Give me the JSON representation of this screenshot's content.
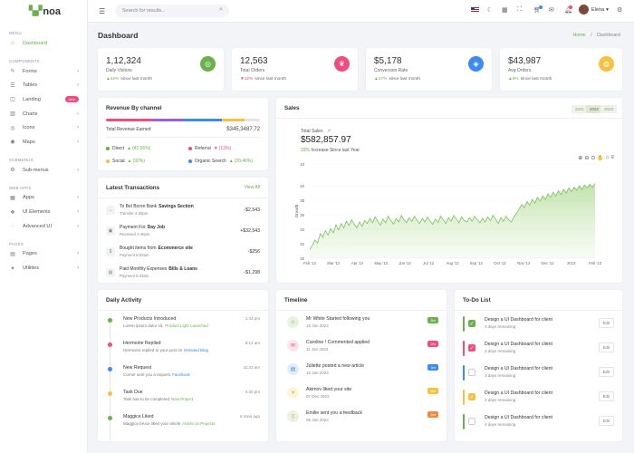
{
  "brand": {
    "logo_mark": "▚▞",
    "name": "noa"
  },
  "sidebar": {
    "sections": [
      "MENU",
      "COMPONENTS",
      "SUBMENUS",
      "WEB APPS",
      "PAGES"
    ],
    "items": [
      {
        "label": "Dashboard",
        "icon": "⌂"
      },
      {
        "label": "Forms",
        "icon": "✎"
      },
      {
        "label": "Tables",
        "icon": "☰"
      },
      {
        "label": "Landing",
        "icon": "◫",
        "badge": "new"
      },
      {
        "label": "Charts",
        "icon": "▥"
      },
      {
        "label": "Icons",
        "icon": "◎"
      },
      {
        "label": "Maps",
        "icon": "◉"
      },
      {
        "label": "Sub-menus",
        "icon": "⚙"
      },
      {
        "label": "Apps",
        "icon": "▦"
      },
      {
        "label": "UI Elements",
        "icon": "❖"
      },
      {
        "label": "Advanced UI",
        "icon": "◌"
      },
      {
        "label": "Pages",
        "icon": "▤"
      },
      {
        "label": "Utilities",
        "icon": "✦"
      }
    ]
  },
  "topbar": {
    "search_placeholder": "Search for results...",
    "user_name": "Elena",
    "user_chevron": "▾"
  },
  "page": {
    "title": "Dashboard",
    "breadcrumb_home": "Home",
    "breadcrumb_sep": "/",
    "breadcrumb_current": "Dashboard"
  },
  "stats": [
    {
      "value": "1,12,324",
      "label": "Daily Visitors",
      "change": "42%",
      "dir": "▲",
      "suffix": "since last month",
      "color": "#6ab04c",
      "icon": "◎"
    },
    {
      "value": "12,563",
      "label": "Total Orders",
      "change": "12%",
      "dir": "▼",
      "suffix": "since last month",
      "color": "#f04c7e",
      "icon": "❦"
    },
    {
      "value": "$5,178",
      "label": "Conversion Rate",
      "change": "27%",
      "dir": "▲",
      "suffix": "since last month",
      "color": "#3d8bf2",
      "icon": "◈"
    },
    {
      "value": "$43,987",
      "label": "Avg Orders",
      "change": "9%",
      "dir": "▲",
      "suffix": "since last month",
      "color": "#f6c23e",
      "icon": "◍"
    }
  ],
  "revenue": {
    "title": "Revenue By channel",
    "earned_label": "Total Revenue Earned",
    "earned_value": "$345,3487.72",
    "channels": [
      {
        "name": "Direct",
        "pct": "(42.56%)",
        "arrow": "▲",
        "color": "#6ab04c",
        "good": true
      },
      {
        "name": "Referral",
        "pct": "(13%)",
        "arrow": "▼",
        "color": "#f04c7e",
        "good": false
      },
      {
        "name": "Social",
        "pct": "(92%)",
        "arrow": "▲",
        "color": "#f6c23e",
        "good": true
      },
      {
        "name": "Organic Search",
        "pct": "(20.46%)",
        "arrow": "▲",
        "color": "#3d8bf2",
        "good": true
      }
    ]
  },
  "transactions": {
    "title": "Latest Transactions",
    "view_all": "View All",
    "items": [
      {
        "title": "To Bel Bcron Bank",
        "bold": "Savings Section",
        "sub": "Transfer 4:30pm",
        "amount": "-$2,543",
        "icon": "↔"
      },
      {
        "title": "Payment For",
        "bold": "Day Job",
        "sub": "Received 2:45pm",
        "amount": "+$32,543",
        "icon": "▣"
      },
      {
        "title": "Bought items from",
        "bold": "Ecommerce site",
        "sub": "Payment 8:00am",
        "amount": "-$256",
        "icon": "$"
      },
      {
        "title": "Paid Monthly Expenses",
        "bold": "Bills & Loans",
        "sub": "Payment 6:43am",
        "amount": "-$1,298",
        "icon": "▤"
      }
    ]
  },
  "sales": {
    "title": "Sales",
    "toggles": [
      "2021",
      "2022",
      "2023"
    ],
    "total_label": "Total Sales",
    "total_icon": "↗",
    "total_value": "$582,857.97",
    "increase_pct": "33%",
    "increase_text": "Increase Since last Year",
    "toolbar_icons": [
      "⊕",
      "⊖",
      "⊙",
      "✋",
      "⌂",
      "≡"
    ]
  },
  "chart_data": {
    "type": "area",
    "title": "",
    "xlabel": "",
    "ylabel": "Growth",
    "ylim": [
      30,
      43
    ],
    "yticks": [
      43,
      40,
      38,
      36,
      34,
      32,
      30
    ],
    "xticks": [
      "Feb '12",
      "Mar '12",
      "Apr '12",
      "May '12",
      "Jun '12",
      "Jul '12",
      "Aug '12",
      "Sep '12",
      "Oct '12",
      "Nov '12",
      "Dec '12",
      "2013",
      "Feb '13"
    ],
    "series": [
      {
        "values": [
          31.2,
          31.8,
          32.5,
          32.1,
          33.4,
          32.9,
          33.8,
          33.2,
          34.1,
          33.5,
          34.6,
          33.9,
          34.8,
          34.2,
          35.1,
          34.5,
          35.3,
          34.7,
          34.2,
          35.0,
          34.4,
          35.2,
          34.8,
          35.5,
          34.9,
          35.7,
          35.1,
          34.6,
          35.4,
          34.9,
          35.8,
          35.2,
          34.7,
          35.5,
          35.0,
          35.9,
          35.3,
          34.9,
          35.6,
          35.1,
          35.8,
          35.2,
          34.8,
          35.5,
          35.0,
          35.7,
          35.1,
          34.7,
          35.4,
          34.9,
          35.8,
          35.3,
          34.8,
          35.6,
          35.1,
          35.9,
          35.4,
          34.9,
          35.7,
          35.2,
          35.0,
          35.6,
          35.1,
          35.8,
          35.3,
          34.9,
          35.5,
          35.0,
          35.7,
          35.2,
          35.9,
          35.4,
          34.8,
          35.6,
          35.1,
          35.8,
          35.3,
          35.0,
          35.7,
          36.2,
          36.8,
          37.4,
          37.0,
          37.8,
          37.3,
          38.1,
          37.6,
          38.4,
          37.9,
          38.6,
          38.1,
          38.9,
          38.4,
          39.1,
          38.6,
          39.3,
          38.8,
          39.5,
          39.0,
          39.7,
          39.2,
          39.8,
          39.4,
          40.0,
          39.5,
          40.1,
          39.7,
          40.2,
          39.8,
          40.3
        ]
      }
    ]
  },
  "activity": {
    "title": "Daily Activity",
    "items": [
      {
        "title": "New Products Introduced",
        "sub": "Lorem ipsum dolor sit.",
        "link": "Product Light Launched",
        "link_color": "g",
        "time": "1:43 pm",
        "color": "#6ab04c"
      },
      {
        "title": "Hermoine Replied",
        "sub": "Hermoine replied to your post on",
        "link": "Detailed Blog",
        "link_color": "b",
        "time": "6:12 am",
        "color": "#f04c7e"
      },
      {
        "title": "New Request",
        "sub": "Corner sent you a request",
        "link": "Facebook",
        "link_color": "b",
        "time": "11:22 am",
        "color": "#3d8bf2"
      },
      {
        "title": "Task Due",
        "sub": "Task has to be completed",
        "link": "New Project",
        "link_color": "g",
        "time": "4:32 pm",
        "color": "#f6c23e"
      },
      {
        "title": "Maggice Liked",
        "sub": "Maggice bruce liked your article",
        "link": "Article on Projects",
        "link_color": "g",
        "time": "5 mins ago",
        "color": "#6ab04c"
      }
    ]
  },
  "timeline": {
    "title": "Timeline",
    "items": [
      {
        "title": "Mr White Started following you",
        "date": "15 Jan 2022",
        "badge": "5m",
        "color": "#6ab04c",
        "bg": "#e8f3e1",
        "icon": "☺"
      },
      {
        "title": "Caroline ! Commented applied",
        "date": "11 Jan 2022",
        "badge": "2m",
        "color": "#f04c7e",
        "bg": "#fde4ec",
        "icon": "✉"
      },
      {
        "title": "Juliette posted a new article",
        "date": "10 Jan 2022",
        "badge": "3m",
        "color": "#3d8bf2",
        "bg": "#e1edfd",
        "icon": "▤"
      },
      {
        "title": "Akimov liked your site",
        "date": "07 Dec 2022",
        "badge": "8m",
        "color": "#f6c23e",
        "bg": "#fdf4dc",
        "icon": "♥"
      },
      {
        "title": "Emilie sent you a feedback",
        "date": "06 Jan 2022",
        "badge": "6m",
        "color": "#f4883a",
        "bg": "#e8f3e1",
        "icon": "▯"
      }
    ]
  },
  "todo": {
    "title": "To-Do List",
    "edit_label": "Edit",
    "items": [
      {
        "text": "Design a UI Dashboard for client",
        "sub": "3 days remaining",
        "checked": true,
        "color": "#6ab04c"
      },
      {
        "text": "Design a UI Dashboard for client",
        "sub": "3 days remaining",
        "checked": true,
        "color": "#f04c7e"
      },
      {
        "text": "Design a UI Dashboard for client",
        "sub": "3 days remaining",
        "checked": false,
        "color": "#3d8bf2"
      },
      {
        "text": "Design a UI Dashboard for client",
        "sub": "3 days remaining",
        "checked": true,
        "color": "#f6c23e"
      },
      {
        "text": "Design a UI Dashboard for client",
        "sub": "3 days remaining",
        "checked": false,
        "color": "#6ab04c"
      }
    ]
  }
}
